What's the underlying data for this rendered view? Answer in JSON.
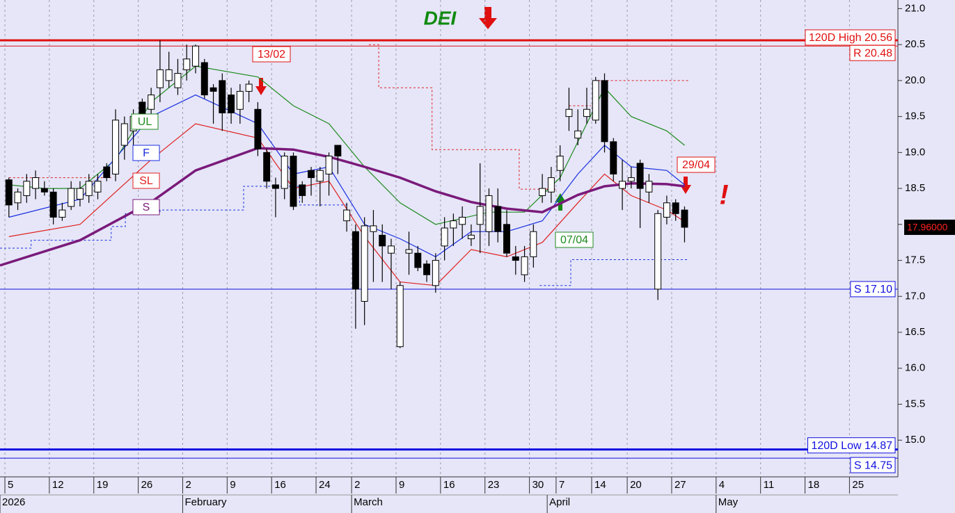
{
  "chart_data": {
    "type": "candlestick",
    "title": "DEI",
    "categories": [
      null,
      null,
      null,
      null,
      null,
      null,
      null,
      null,
      null,
      null,
      null,
      null,
      null,
      null,
      null,
      null,
      null,
      null,
      null,
      null,
      null,
      null,
      null,
      null,
      null,
      null,
      null,
      null,
      null,
      null,
      null,
      null,
      null,
      null,
      null,
      null,
      null,
      null,
      null,
      null,
      null,
      null,
      null,
      null,
      null,
      null,
      null,
      null,
      null,
      null,
      null,
      null,
      null,
      null,
      null,
      null,
      null,
      null,
      null,
      null,
      null,
      null,
      null,
      null,
      null,
      null,
      null,
      null,
      null,
      null,
      null,
      null,
      null,
      null,
      null,
      null,
      null
    ],
    "ohlc": {
      "open": [
        18.62,
        18.3,
        18.4,
        18.5,
        18.5,
        18.45,
        18.1,
        18.25,
        18.35,
        18.4,
        18.45,
        18.8,
        18.7,
        19.1,
        19.3,
        19.7,
        19.6,
        19.9,
        20.0,
        19.9,
        20.15,
        20.2,
        20.25,
        19.9,
        20.0,
        19.8,
        19.6,
        19.85,
        19.6,
        19.0,
        18.55,
        18.5,
        18.95,
        18.55,
        18.75,
        18.6,
        18.7,
        19.1,
        18.05,
        17.9,
        16.93,
        17.9,
        17.85,
        17.6,
        16.3,
        17.6,
        17.6,
        17.45,
        17.15,
        17.7,
        17.95,
        18.0,
        17.8,
        18.0,
        17.9,
        18.25,
        18.0,
        17.55,
        17.3,
        17.55,
        18.4,
        18.45,
        18.75,
        19.5,
        19.2,
        19.5,
        19.45,
        20.0,
        19.15,
        18.5,
        18.6,
        18.85,
        18.45,
        17.1,
        18.1,
        18.3,
        18.2
      ],
      "high": [
        18.65,
        18.5,
        18.7,
        18.75,
        18.6,
        18.5,
        18.3,
        18.6,
        18.6,
        18.7,
        18.7,
        18.85,
        19.6,
        19.5,
        19.6,
        19.75,
        19.9,
        20.56,
        20.4,
        20.3,
        20.5,
        20.5,
        20.3,
        19.95,
        20.1,
        19.9,
        19.95,
        20.0,
        19.7,
        19.05,
        18.65,
        19.0,
        19.0,
        18.6,
        18.8,
        18.8,
        19.0,
        19.1,
        18.3,
        18.0,
        18.1,
        18.2,
        18.0,
        17.8,
        17.2,
        17.9,
        17.7,
        17.5,
        17.6,
        18.1,
        18.15,
        18.25,
        18.0,
        18.85,
        18.5,
        18.5,
        18.2,
        17.7,
        17.7,
        18.0,
        18.7,
        18.8,
        19.1,
        19.9,
        19.6,
        19.9,
        20.05,
        20.1,
        19.2,
        18.9,
        18.8,
        18.9,
        18.7,
        18.2,
        18.4,
        18.35,
        18.25
      ],
      "low": [
        18.1,
        18.2,
        18.3,
        18.35,
        18.4,
        18.0,
        18.05,
        18.2,
        18.25,
        18.3,
        18.35,
        18.6,
        18.6,
        18.9,
        19.1,
        19.4,
        19.4,
        19.7,
        19.9,
        19.8,
        20.0,
        20.1,
        19.75,
        19.4,
        19.3,
        19.4,
        19.4,
        19.7,
        18.95,
        18.5,
        18.1,
        18.35,
        18.2,
        18.3,
        18.4,
        18.25,
        18.4,
        18.7,
        17.9,
        16.55,
        16.6,
        17.2,
        17.2,
        17.1,
        16.28,
        17.3,
        17.35,
        17.2,
        17.05,
        17.5,
        17.7,
        17.8,
        17.7,
        17.6,
        17.7,
        17.75,
        17.55,
        17.3,
        17.2,
        17.4,
        18.3,
        18.3,
        18.6,
        19.3,
        19.1,
        19.4,
        19.4,
        19.0,
        18.6,
        18.2,
        18.5,
        17.95,
        18.3,
        16.95,
        18.0,
        18.05,
        17.75
      ],
      "close": [
        18.27,
        18.45,
        18.6,
        18.65,
        18.45,
        18.1,
        18.2,
        18.5,
        18.5,
        18.6,
        18.6,
        18.65,
        19.45,
        19.4,
        19.5,
        19.5,
        19.8,
        20.15,
        20.15,
        20.1,
        20.3,
        20.48,
        19.8,
        19.85,
        19.55,
        19.55,
        19.85,
        19.95,
        19.05,
        18.6,
        18.5,
        18.95,
        18.25,
        18.4,
        18.65,
        18.75,
        18.95,
        18.95,
        18.2,
        17.1,
        17.98,
        17.98,
        17.7,
        17.7,
        17.15,
        17.65,
        17.4,
        17.3,
        17.5,
        17.95,
        18.05,
        18.1,
        17.85,
        18.25,
        18.4,
        17.9,
        17.6,
        17.5,
        17.55,
        17.9,
        18.5,
        18.65,
        18.95,
        19.6,
        19.3,
        19.6,
        20.0,
        19.15,
        18.7,
        18.6,
        18.65,
        18.5,
        18.6,
        18.15,
        18.3,
        18.15,
        17.96
      ]
    },
    "up_color": "#ffffff",
    "down_color": "#000000",
    "lines": [
      {
        "name": "UL",
        "color": "#1f8a1f",
        "x": [
          0,
          4,
          8,
          12,
          16,
          21,
          28,
          32,
          36,
          40,
          44,
          48,
          54,
          58,
          62,
          67,
          70,
          74,
          76
        ],
        "values": [
          18.55,
          18.5,
          18.5,
          18.9,
          19.7,
          20.2,
          20.05,
          19.65,
          19.4,
          18.8,
          18.3,
          18.0,
          18.17,
          18.17,
          18.65,
          19.9,
          19.5,
          19.3,
          19.1
        ]
      },
      {
        "name": "F",
        "color": "#1a2ee0",
        "x": [
          0,
          8,
          16,
          21,
          28,
          32,
          36,
          40,
          44,
          48,
          52,
          56,
          60,
          64,
          67,
          70,
          74,
          76
        ],
        "values": [
          18.1,
          18.35,
          19.5,
          19.8,
          19.4,
          18.7,
          18.8,
          18.0,
          17.8,
          17.55,
          17.9,
          17.9,
          18.05,
          18.7,
          19.1,
          18.8,
          18.75,
          18.55
        ]
      },
      {
        "name": "SL",
        "color": "#e02020",
        "x": [
          0,
          8,
          16,
          21,
          28,
          32,
          36,
          40,
          44,
          48,
          52,
          56,
          60,
          64,
          67,
          70,
          74,
          76
        ],
        "values": [
          17.83,
          18.0,
          18.9,
          19.4,
          19.2,
          18.5,
          18.6,
          17.83,
          17.2,
          17.15,
          17.65,
          17.55,
          17.75,
          18.3,
          18.7,
          18.4,
          18.2,
          18.04
        ]
      },
      {
        "name": "S",
        "color": "#7a1a7a",
        "x": [
          -1,
          8,
          16,
          21,
          28,
          32,
          36,
          40,
          44,
          48,
          52,
          56,
          60,
          64,
          67,
          70,
          74,
          76
        ],
        "values": [
          17.43,
          17.78,
          18.31,
          18.75,
          19.06,
          19.04,
          18.94,
          18.8,
          18.65,
          18.46,
          18.31,
          18.22,
          18.17,
          18.41,
          18.53,
          18.57,
          18.56,
          18.53
        ]
      }
    ],
    "stops": [
      {
        "color": "#e02020",
        "x": [
          0,
          11.5,
          12,
          40.5,
          41.6,
          41.6,
          47.6,
          47.6,
          57.4,
          57.4,
          61.5,
          62,
          63,
          65.5,
          66,
          66.3,
          76.4
        ],
        "values": [
          18.65,
          18.65,
          null,
          20.5,
          20.5,
          19.9,
          19.9,
          19.04,
          19.04,
          18.49,
          18.49,
          null,
          19.65,
          19.65,
          null,
          20.0,
          20.0
        ]
      },
      {
        "color": "#1a2ee0",
        "x": [
          -1,
          2.5,
          2.5,
          11.5,
          11.5,
          13.1,
          13.1,
          17,
          17,
          26.4,
          26.4,
          32.7,
          32.7,
          38.2,
          39,
          59.7,
          63.2,
          63.2,
          76.5
        ],
        "values": [
          17.67,
          17.67,
          17.78,
          17.78,
          17.97,
          17.97,
          18.15,
          18.15,
          18.2,
          18.2,
          18.53,
          18.53,
          18.27,
          18.27,
          null,
          17.15,
          17.15,
          17.51,
          17.51
        ]
      }
    ],
    "levels": [
      {
        "value": 20.56,
        "label": "120D High 20.56",
        "color": "#e01010"
      },
      {
        "value": 20.48,
        "label": "R 20.48",
        "color": "#e01010"
      },
      {
        "value": 17.1,
        "label": "S 17.10",
        "color": "#1010e0"
      },
      {
        "value": 14.87,
        "label": "120D Low 14.87",
        "color": "#1010e0"
      },
      {
        "value": 14.75,
        "label": "S 14.75",
        "color": "#1010e0"
      }
    ],
    "last_price": {
      "value": 17.96,
      "label": "17.96000"
    },
    "annotations": [
      {
        "text": "13/02",
        "color": "#e01010"
      },
      {
        "text": "29/04",
        "color": "#e01010"
      },
      {
        "text": "07/04",
        "color": "#1f8a1f"
      },
      {
        "text": "!",
        "color": "#e01010"
      }
    ],
    "xlim": [
      -1,
      100
    ],
    "ylim": [
      14.49,
      21.12
    ],
    "yticks": [
      {
        "value": 15,
        "label": "15.0"
      },
      15.5,
      {
        "value": 16,
        "label": "16.0"
      },
      16.5,
      {
        "value": 17,
        "label": "17.0"
      },
      17.5,
      {
        "value": 18,
        "label": "18.0"
      },
      18.5,
      {
        "value": 19,
        "label": "19.0"
      },
      19.5,
      {
        "value": 20,
        "label": "20.0"
      },
      20.5,
      {
        "value": 21,
        "label": "21.0"
      }
    ],
    "xticks": [
      {
        "value": 0,
        "label": "5"
      },
      {
        "value": 5,
        "label": "12"
      },
      {
        "value": 10,
        "label": "19"
      },
      {
        "value": 15,
        "label": "26"
      },
      {
        "value": 20,
        "label": "2"
      },
      {
        "value": 25,
        "label": "9"
      },
      {
        "value": 30,
        "label": "16"
      },
      {
        "value": 35,
        "label": "24"
      },
      {
        "value": 39,
        "label": "2"
      },
      {
        "value": 44,
        "label": "9"
      },
      {
        "value": 49,
        "label": "16"
      },
      {
        "value": 54,
        "label": "23"
      },
      {
        "value": 59,
        "label": "30"
      },
      {
        "value": 62,
        "label": "7"
      },
      {
        "value": 66,
        "label": "14"
      },
      {
        "value": 70,
        "label": "20"
      },
      {
        "value": 75,
        "label": "27"
      },
      {
        "value": 80,
        "label": "4"
      },
      {
        "value": 85,
        "label": "11"
      },
      {
        "value": 90,
        "label": "18"
      },
      {
        "value": 95,
        "label": "25"
      }
    ],
    "month_ticks": [
      {
        "value": -1,
        "label": "2026"
      },
      {
        "value": 20,
        "label": "February"
      },
      {
        "value": 39,
        "label": "March"
      },
      {
        "value": 61,
        "label": "April"
      },
      {
        "value": 80,
        "label": "May"
      }
    ],
    "grid": true
  }
}
